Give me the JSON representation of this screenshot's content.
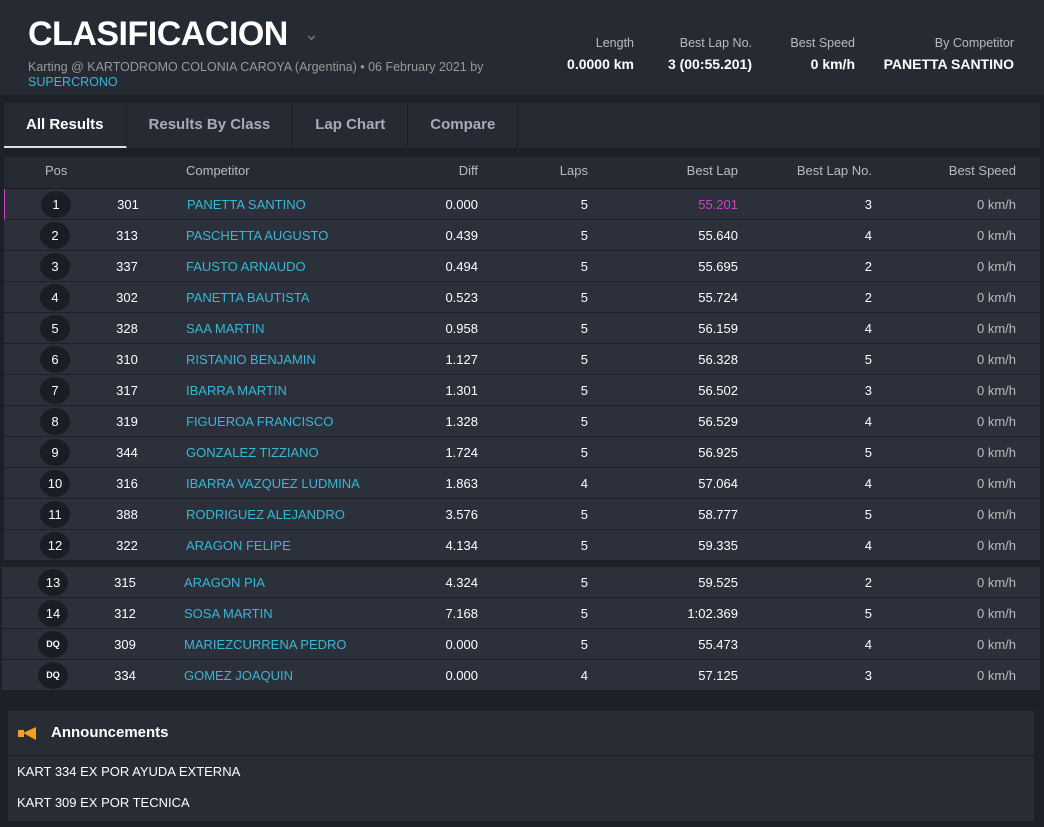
{
  "header": {
    "title": "CLASIFICACION",
    "subtitle": "Karting @ KARTODROMO COLONIA CAROYA (Argentina) • 06 February 2021 by",
    "organizer": "SUPERCRONO",
    "stats": [
      {
        "label": "Length",
        "value": "0.0000 km"
      },
      {
        "label": "Best Lap No.",
        "value": "3 (00:55.201)"
      },
      {
        "label": "Best Speed",
        "value": "0 km/h"
      },
      {
        "label": "By Competitor",
        "value": "PANETTA SANTINO"
      }
    ]
  },
  "tabs": [
    "All Results",
    "Results By Class",
    "Lap Chart",
    "Compare"
  ],
  "columns": {
    "pos": "Pos",
    "competitor": "Competitor",
    "diff": "Diff",
    "laps": "Laps",
    "best_lap": "Best Lap",
    "best_lap_no": "Best Lap No.",
    "best_speed": "Best Speed"
  },
  "colors": {
    "accent": "#3ab6d6",
    "best": "#c944c9"
  },
  "rows": [
    [
      "1",
      "301",
      "PANETTA SANTINO",
      "0.000",
      "5",
      "55.201",
      "3",
      "0 km/h"
    ],
    [
      "2",
      "313",
      "PASCHETTA AUGUSTO",
      "0.439",
      "5",
      "55.640",
      "4",
      "0 km/h"
    ],
    [
      "3",
      "337",
      "FAUSTO ARNAUDO",
      "0.494",
      "5",
      "55.695",
      "2",
      "0 km/h"
    ],
    [
      "4",
      "302",
      "PANETTA BAUTISTA",
      "0.523",
      "5",
      "55.724",
      "2",
      "0 km/h"
    ],
    [
      "5",
      "328",
      "SAA MARTIN",
      "0.958",
      "5",
      "56.159",
      "4",
      "0 km/h"
    ],
    [
      "6",
      "310",
      "RISTANIO BENJAMIN",
      "1.127",
      "5",
      "56.328",
      "5",
      "0 km/h"
    ],
    [
      "7",
      "317",
      "IBARRA MARTIN",
      "1.301",
      "5",
      "56.502",
      "3",
      "0 km/h"
    ],
    [
      "8",
      "319",
      "FIGUEROA FRANCISCO",
      "1.328",
      "5",
      "56.529",
      "4",
      "0 km/h"
    ],
    [
      "9",
      "344",
      "GONZALEZ TIZZIANO",
      "1.724",
      "5",
      "56.925",
      "5",
      "0 km/h"
    ],
    [
      "10",
      "316",
      "IBARRA VAZQUEZ LUDMINA",
      "1.863",
      "4",
      "57.064",
      "4",
      "0 km/h"
    ],
    [
      "11",
      "388",
      "RODRIGUEZ ALEJANDRO",
      "3.576",
      "5",
      "58.777",
      "5",
      "0 km/h"
    ],
    [
      "12",
      "322",
      "ARAGON FELIPE",
      "4.134",
      "5",
      "59.335",
      "4",
      "0 km/h"
    ],
    [
      "13",
      "315",
      "ARAGON PIA",
      "4.324",
      "5",
      "59.525",
      "2",
      "0 km/h"
    ],
    [
      "14",
      "312",
      "SOSA MARTIN",
      "7.168",
      "5",
      "1:02.369",
      "5",
      "0 km/h"
    ],
    [
      "DQ",
      "309",
      "MARIEZCURRENA PEDRO",
      "0.000",
      "5",
      "55.473",
      "4",
      "0 km/h"
    ],
    [
      "DQ",
      "334",
      "GOMEZ JOAQUIN",
      "0.000",
      "4",
      "57.125",
      "3",
      "0 km/h"
    ]
  ],
  "announcements": {
    "title": "Announcements",
    "items": [
      "KART 334 EX POR AYUDA EXTERNA",
      "KART 309 EX POR TECNICA"
    ]
  }
}
